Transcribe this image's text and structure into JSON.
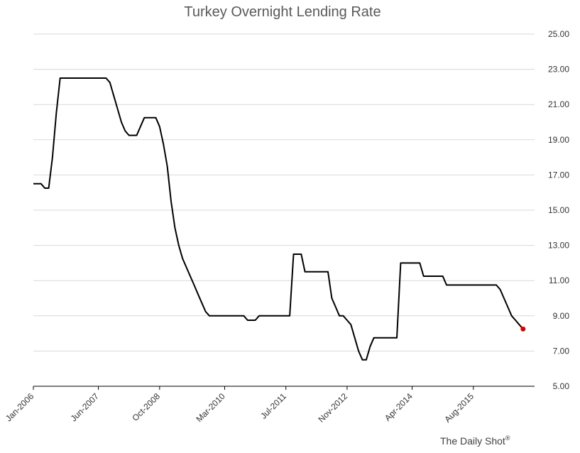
{
  "chart_data": {
    "type": "line",
    "title": "Turkey Overnight Lending Rate",
    "xlabel": "",
    "ylabel": "",
    "ylim": [
      5,
      25
    ],
    "yticks": [
      "5.00",
      "7.00",
      "9.00",
      "11.00",
      "13.00",
      "15.00",
      "17.00",
      "19.00",
      "21.00",
      "23.00",
      "25.00"
    ],
    "x_tick_labels": [
      "Jan-2006",
      "Jun-2007",
      "Oct-2008",
      "Mar-2010",
      "Jul-2011",
      "Nov-2012",
      "Apr-2014",
      "Aug-2015"
    ],
    "x_axis_start": "2006-01",
    "x_axis_end": "2016-12",
    "y_axis_position": "right",
    "grid": true,
    "last_point_color": "#e00000",
    "series": [
      {
        "color": "#000000",
        "points": [
          [
            "2006-01",
            16.5
          ],
          [
            "2006-03",
            16.5
          ],
          [
            "2006-04",
            16.25
          ],
          [
            "2006-05",
            16.25
          ],
          [
            "2006-06",
            18.0
          ],
          [
            "2006-07",
            20.5
          ],
          [
            "2006-08",
            22.5
          ],
          [
            "2006-10",
            22.5
          ],
          [
            "2007-01",
            22.5
          ],
          [
            "2007-06",
            22.5
          ],
          [
            "2007-08",
            22.5
          ],
          [
            "2007-09",
            22.25
          ],
          [
            "2007-10",
            21.5
          ],
          [
            "2007-11",
            20.75
          ],
          [
            "2007-12",
            20.0
          ],
          [
            "2008-01",
            19.5
          ],
          [
            "2008-02",
            19.25
          ],
          [
            "2008-03",
            19.25
          ],
          [
            "2008-04",
            19.25
          ],
          [
            "2008-05",
            19.75
          ],
          [
            "2008-06",
            20.25
          ],
          [
            "2008-08",
            20.25
          ],
          [
            "2008-09",
            20.25
          ],
          [
            "2008-10",
            19.75
          ],
          [
            "2008-11",
            18.75
          ],
          [
            "2008-12",
            17.5
          ],
          [
            "2009-01",
            15.5
          ],
          [
            "2009-02",
            14.0
          ],
          [
            "2009-03",
            13.0
          ],
          [
            "2009-04",
            12.25
          ],
          [
            "2009-05",
            11.75
          ],
          [
            "2009-06",
            11.25
          ],
          [
            "2009-07",
            10.75
          ],
          [
            "2009-08",
            10.25
          ],
          [
            "2009-09",
            9.75
          ],
          [
            "2009-10",
            9.25
          ],
          [
            "2009-11",
            9.0
          ],
          [
            "2009-12",
            9.0
          ],
          [
            "2010-03",
            9.0
          ],
          [
            "2010-06",
            9.0
          ],
          [
            "2010-08",
            9.0
          ],
          [
            "2010-09",
            8.75
          ],
          [
            "2010-10",
            8.75
          ],
          [
            "2010-11",
            8.75
          ],
          [
            "2010-12",
            9.0
          ],
          [
            "2011-01",
            9.0
          ],
          [
            "2011-06",
            9.0
          ],
          [
            "2011-07",
            9.0
          ],
          [
            "2011-08",
            9.0
          ],
          [
            "2011-09",
            12.5
          ],
          [
            "2011-10",
            12.5
          ],
          [
            "2011-11",
            12.5
          ],
          [
            "2011-12",
            11.5
          ],
          [
            "2012-01",
            11.5
          ],
          [
            "2012-03",
            11.5
          ],
          [
            "2012-05",
            11.5
          ],
          [
            "2012-06",
            11.5
          ],
          [
            "2012-07",
            10.0
          ],
          [
            "2012-08",
            9.5
          ],
          [
            "2012-09",
            9.0
          ],
          [
            "2012-10",
            9.0
          ],
          [
            "2012-11",
            8.75
          ],
          [
            "2012-12",
            8.5
          ],
          [
            "2013-01",
            7.75
          ],
          [
            "2013-02",
            7.0
          ],
          [
            "2013-03",
            6.5
          ],
          [
            "2013-04",
            6.5
          ],
          [
            "2013-05",
            7.25
          ],
          [
            "2013-06",
            7.75
          ],
          [
            "2013-08",
            7.75
          ],
          [
            "2013-10",
            7.75
          ],
          [
            "2013-12",
            7.75
          ],
          [
            "2014-01",
            12.0
          ],
          [
            "2014-03",
            12.0
          ],
          [
            "2014-05",
            12.0
          ],
          [
            "2014-06",
            12.0
          ],
          [
            "2014-07",
            11.25
          ],
          [
            "2014-09",
            11.25
          ],
          [
            "2014-11",
            11.25
          ],
          [
            "2014-12",
            11.25
          ],
          [
            "2015-01",
            10.75
          ],
          [
            "2015-03",
            10.75
          ],
          [
            "2015-06",
            10.75
          ],
          [
            "2015-09",
            10.75
          ],
          [
            "2015-12",
            10.75
          ],
          [
            "2016-02",
            10.75
          ],
          [
            "2016-03",
            10.5
          ],
          [
            "2016-04",
            10.0
          ],
          [
            "2016-05",
            9.5
          ],
          [
            "2016-06",
            9.0
          ],
          [
            "2016-07",
            8.75
          ],
          [
            "2016-08",
            8.5
          ],
          [
            "2016-09",
            8.25
          ]
        ]
      }
    ]
  },
  "credit": {
    "text": "The Daily Shot",
    "mark": "®"
  }
}
